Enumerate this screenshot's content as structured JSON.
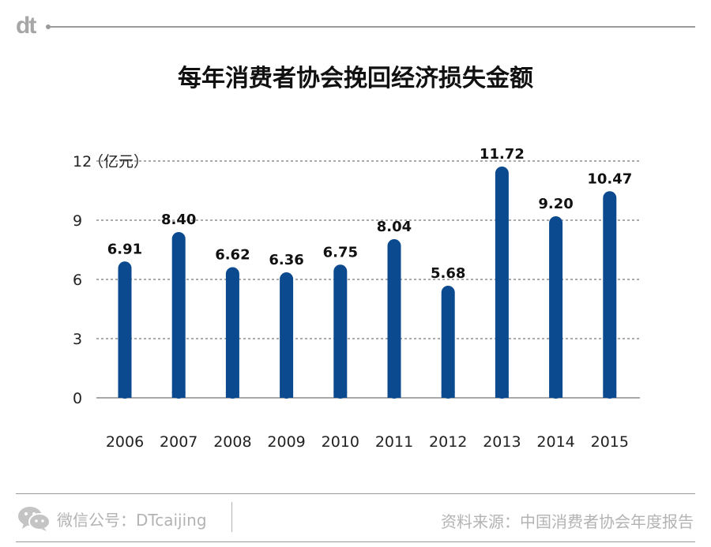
{
  "brand": {
    "logo_text": "dt"
  },
  "chart_data": {
    "type": "bar",
    "title": "每年消费者协会挽回经济损失金额",
    "ylabel": "（亿元）",
    "ylim": [
      0,
      12
    ],
    "yticks": [
      0,
      3,
      6,
      9,
      12
    ],
    "categories": [
      "2006",
      "2007",
      "2008",
      "2009",
      "2010",
      "2011",
      "2012",
      "2013",
      "2014",
      "2015"
    ],
    "values": [
      6.91,
      8.4,
      6.62,
      6.36,
      6.75,
      8.04,
      5.68,
      11.72,
      9.2,
      10.47
    ],
    "value_labels": [
      "6.91",
      "8.40",
      "6.62",
      "6.36",
      "6.75",
      "8.04",
      "5.68",
      "11.72",
      "9.20",
      "10.47"
    ],
    "bar_color": "#0b4a8f",
    "grid": true
  },
  "footer": {
    "wechat_icon": "wechat-icon",
    "left_text": "微信公号：DTcaijing",
    "right_text": "资料来源：中国消费者协会年度报告"
  },
  "colors": {
    "bar": "#0b4a8f",
    "grid": "#555555",
    "muted": "#b3b3b3"
  }
}
